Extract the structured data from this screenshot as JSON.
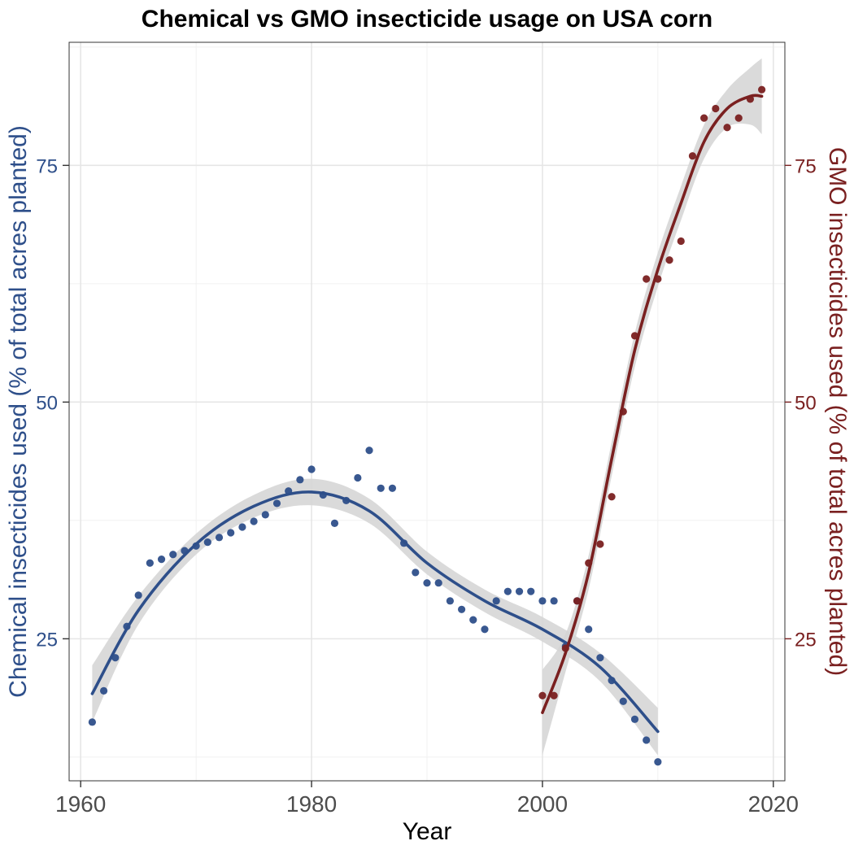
{
  "chart_data": {
    "type": "scatter",
    "title": "Chemical vs GMO insecticide usage on USA corn",
    "xlabel": "Year",
    "ylabel_left": "Chemical insecticides used (% of total acres planted)",
    "ylabel_right": "GMO insecticides used (% of total acres planted)",
    "xlim": [
      1959,
      2021
    ],
    "ylim": [
      10,
      88
    ],
    "x_ticks": [
      1960,
      1980,
      2000,
      2020
    ],
    "y_ticks_left": [
      25,
      50,
      75
    ],
    "y_ticks_right": [
      25,
      50,
      75
    ],
    "grid": true,
    "colors": {
      "chemical": "#2e4f8a",
      "gmo": "#7a2020",
      "band": "#d3d3d3",
      "title": "#000000"
    },
    "series": [
      {
        "key": "chemical",
        "axis": "left",
        "x": [
          1961,
          1962,
          1963,
          1964,
          1965,
          1966,
          1967,
          1968,
          1969,
          1970,
          1971,
          1972,
          1973,
          1974,
          1975,
          1976,
          1977,
          1978,
          1979,
          1980,
          1981,
          1982,
          1983,
          1984,
          1985,
          1986,
          1987,
          1988,
          1989,
          1990,
          1991,
          1992,
          1993,
          1994,
          1995,
          1996,
          1997,
          1998,
          1999,
          2000,
          2001,
          2002,
          2003,
          2004,
          2005,
          2006,
          2007,
          2008,
          2009,
          2010
        ],
        "y": [
          16.2,
          19.5,
          23.0,
          26.3,
          29.6,
          33.0,
          33.4,
          33.9,
          34.3,
          34.8,
          35.2,
          35.7,
          36.2,
          36.8,
          37.4,
          38.1,
          39.3,
          40.6,
          41.8,
          42.9,
          40.2,
          37.2,
          39.6,
          42.0,
          44.9,
          40.9,
          40.9,
          35.1,
          32.0,
          30.9,
          30.9,
          29.0,
          28.1,
          27.0,
          26.0,
          29.0,
          30.0,
          30.0,
          30.0,
          29.0,
          29.0,
          24.2,
          29.0,
          26.0,
          23.0,
          20.6,
          18.4,
          16.5,
          14.3,
          12.0
        ]
      },
      {
        "key": "gmo",
        "axis": "right",
        "x": [
          2000,
          2001,
          2002,
          2003,
          2004,
          2005,
          2006,
          2007,
          2008,
          2009,
          2010,
          2011,
          2012,
          2013,
          2014,
          2015,
          2016,
          2017,
          2018,
          2019
        ],
        "y": [
          19.0,
          19.0,
          24.0,
          29.0,
          33.0,
          35.0,
          40.0,
          49.0,
          57.0,
          63.0,
          63.0,
          65.0,
          67.0,
          76.0,
          80.0,
          81.0,
          79.0,
          80.0,
          82.0,
          83.0
        ]
      }
    ],
    "smooth": [
      {
        "key": "chemical",
        "x": [
          1961,
          1965,
          1970,
          1975,
          1980,
          1985,
          1990,
          1995,
          2000,
          2005,
          2010
        ],
        "y": [
          19.2,
          28.0,
          35.0,
          39.0,
          40.5,
          38.5,
          33.0,
          29.0,
          26.0,
          22.0,
          15.2
        ],
        "band_halfwidth": [
          3.0,
          1.5,
          1.1,
          1.2,
          1.4,
          1.3,
          1.2,
          1.2,
          1.3,
          1.5,
          2.5
        ]
      },
      {
        "key": "gmo",
        "x": [
          2000,
          2002,
          2004,
          2006,
          2008,
          2010,
          2012,
          2014,
          2016,
          2018,
          2019
        ],
        "y": [
          17.2,
          23.5,
          32.0,
          44.0,
          55.5,
          64.0,
          71.0,
          77.5,
          81.0,
          82.3,
          82.3
        ],
        "band_halfwidth": [
          4.5,
          2.0,
          1.8,
          1.8,
          1.8,
          1.8,
          1.8,
          1.8,
          2.0,
          3.0,
          4.0
        ]
      }
    ]
  }
}
